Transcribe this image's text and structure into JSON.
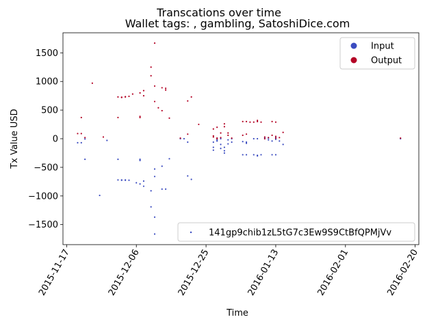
{
  "chart_data": {
    "type": "scatter",
    "title": "Transcations over time",
    "subtitle": "Wallet tags: , gambling, SatoshiDice.com",
    "xlabel": "Time",
    "ylabel": "Tx Value USD",
    "xlim": [
      "2015-11-16",
      "2016-02-21"
    ],
    "ylim": [
      -1850,
      1850
    ],
    "xticks": [
      "2015-11-17",
      "2015-12-06",
      "2015-12-25",
      "2016-01-13",
      "2016-02-01",
      "2016-02-20"
    ],
    "yticks": [
      -1500,
      -1000,
      -500,
      0,
      500,
      1000,
      1500
    ],
    "grid": false,
    "legends": [
      {
        "placement": "upper right",
        "entries": [
          {
            "label": "Input",
            "color": "#3b4cc0",
            "marker": "circle"
          },
          {
            "label": "Output",
            "color": "#b40426",
            "marker": "circle"
          }
        ]
      },
      {
        "placement": "lower right",
        "entries": [
          {
            "label": "141gp9chib1zL5tG7c3Ew9S9CtBfQPMjVv",
            "color": "#3b4cc0",
            "marker": "dot"
          }
        ]
      }
    ],
    "series": [
      {
        "name": "Input",
        "color": "#3b4cc0",
        "points": [
          [
            "2015-11-20",
            -70
          ],
          [
            "2015-11-21",
            -70
          ],
          [
            "2015-11-22",
            -360
          ],
          [
            "2015-11-22",
            -5
          ],
          [
            "2015-11-26",
            -990
          ],
          [
            "2015-11-28",
            -30
          ],
          [
            "2015-12-01",
            -360
          ],
          [
            "2015-12-01",
            -720
          ],
          [
            "2015-12-02",
            -720
          ],
          [
            "2015-12-02",
            -725
          ],
          [
            "2015-12-03",
            -725
          ],
          [
            "2015-12-03",
            -720
          ],
          [
            "2015-12-04",
            -725
          ],
          [
            "2015-12-06",
            -770
          ],
          [
            "2015-12-07",
            -790
          ],
          [
            "2015-12-07",
            -360
          ],
          [
            "2015-12-07",
            -380
          ],
          [
            "2015-12-08",
            -830
          ],
          [
            "2015-12-08",
            -740
          ],
          [
            "2015-12-10",
            -1190
          ],
          [
            "2015-12-10",
            -910
          ],
          [
            "2015-12-11",
            -1370
          ],
          [
            "2015-12-11",
            -1665
          ],
          [
            "2015-12-11",
            -660
          ],
          [
            "2015-12-11",
            -530
          ],
          [
            "2015-12-13",
            -480
          ],
          [
            "2015-12-13",
            -880
          ],
          [
            "2015-12-14",
            -880
          ],
          [
            "2015-12-15",
            -350
          ],
          [
            "2015-12-18",
            0
          ],
          [
            "2015-12-19",
            0
          ],
          [
            "2015-12-20",
            -650
          ],
          [
            "2015-12-20",
            -60
          ],
          [
            "2015-12-21",
            -710
          ],
          [
            "2015-12-27",
            -150
          ],
          [
            "2015-12-27",
            -60
          ],
          [
            "2015-12-27",
            -200
          ],
          [
            "2015-12-28",
            -20
          ],
          [
            "2015-12-28",
            10
          ],
          [
            "2015-12-28",
            -40
          ],
          [
            "2015-12-29",
            -170
          ],
          [
            "2015-12-29",
            0
          ],
          [
            "2015-12-29",
            -100
          ],
          [
            "2015-12-30",
            -150
          ],
          [
            "2015-12-30",
            -210
          ],
          [
            "2015-12-30",
            -250
          ],
          [
            "2015-12-31",
            -20
          ],
          [
            "2015-12-31",
            -90
          ],
          [
            "2016-01-01",
            0
          ],
          [
            "2016-01-01",
            -60
          ],
          [
            "2016-01-04",
            -280
          ],
          [
            "2016-01-04",
            -50
          ],
          [
            "2016-01-05",
            -280
          ],
          [
            "2016-01-05",
            -60
          ],
          [
            "2016-01-05",
            -80
          ],
          [
            "2016-01-07",
            -280
          ],
          [
            "2016-01-07",
            0
          ],
          [
            "2016-01-08",
            -290
          ],
          [
            "2016-01-08",
            -300
          ],
          [
            "2016-01-08",
            0
          ],
          [
            "2016-01-09",
            -280
          ],
          [
            "2016-01-10",
            0
          ],
          [
            "2016-01-10",
            20
          ],
          [
            "2016-01-11",
            10
          ],
          [
            "2016-01-11",
            -20
          ],
          [
            "2016-01-12",
            -280
          ],
          [
            "2016-01-12",
            -40
          ],
          [
            "2016-01-13",
            20
          ],
          [
            "2016-01-13",
            -280
          ],
          [
            "2016-01-13",
            -10
          ],
          [
            "2016-01-14",
            -40
          ],
          [
            "2016-01-15",
            -100
          ],
          [
            "2016-02-16",
            0
          ]
        ]
      },
      {
        "name": "Output",
        "color": "#b40426",
        "points": [
          [
            "2015-11-20",
            90
          ],
          [
            "2015-11-21",
            90
          ],
          [
            "2015-11-21",
            370
          ],
          [
            "2015-11-22",
            20
          ],
          [
            "2015-11-24",
            970
          ],
          [
            "2015-11-27",
            30
          ],
          [
            "2015-12-01",
            370
          ],
          [
            "2015-12-01",
            730
          ],
          [
            "2015-12-02",
            720
          ],
          [
            "2015-12-02",
            725
          ],
          [
            "2015-12-03",
            730
          ],
          [
            "2015-12-03",
            735
          ],
          [
            "2015-12-04",
            740
          ],
          [
            "2015-12-05",
            780
          ],
          [
            "2015-12-07",
            800
          ],
          [
            "2015-12-07",
            370
          ],
          [
            "2015-12-07",
            390
          ],
          [
            "2015-12-08",
            840
          ],
          [
            "2015-12-08",
            750
          ],
          [
            "2015-12-10",
            1250
          ],
          [
            "2015-12-10",
            1100
          ],
          [
            "2015-12-11",
            1670
          ],
          [
            "2015-12-11",
            920
          ],
          [
            "2015-12-11",
            650
          ],
          [
            "2015-12-12",
            540
          ],
          [
            "2015-12-13",
            490
          ],
          [
            "2015-12-13",
            890
          ],
          [
            "2015-12-14",
            880
          ],
          [
            "2015-12-14",
            850
          ],
          [
            "2015-12-15",
            360
          ],
          [
            "2015-12-18",
            10
          ],
          [
            "2015-12-20",
            660
          ],
          [
            "2015-12-20",
            80
          ],
          [
            "2015-12-21",
            730
          ],
          [
            "2015-12-23",
            250
          ],
          [
            "2015-12-27",
            170
          ],
          [
            "2015-12-27",
            50
          ],
          [
            "2015-12-27",
            30
          ],
          [
            "2015-12-28",
            10
          ],
          [
            "2015-12-28",
            200
          ],
          [
            "2015-12-28",
            0
          ],
          [
            "2015-12-29",
            100
          ],
          [
            "2015-12-29",
            20
          ],
          [
            "2015-12-30",
            210
          ],
          [
            "2015-12-30",
            260
          ],
          [
            "2015-12-31",
            60
          ],
          [
            "2015-12-31",
            100
          ],
          [
            "2016-01-01",
            10
          ],
          [
            "2016-01-04",
            300
          ],
          [
            "2016-01-04",
            60
          ],
          [
            "2016-01-05",
            300
          ],
          [
            "2016-01-05",
            80
          ],
          [
            "2016-01-06",
            290
          ],
          [
            "2016-01-07",
            290
          ],
          [
            "2016-01-08",
            300
          ],
          [
            "2016-01-08",
            320
          ],
          [
            "2016-01-09",
            290
          ],
          [
            "2016-01-10",
            0
          ],
          [
            "2016-01-10",
            30
          ],
          [
            "2016-01-11",
            20
          ],
          [
            "2016-01-12",
            300
          ],
          [
            "2016-01-12",
            60
          ],
          [
            "2016-01-13",
            290
          ],
          [
            "2016-01-13",
            10
          ],
          [
            "2016-01-13",
            40
          ],
          [
            "2016-01-14",
            20
          ],
          [
            "2016-01-15",
            110
          ],
          [
            "2016-02-16",
            10
          ]
        ]
      }
    ]
  }
}
